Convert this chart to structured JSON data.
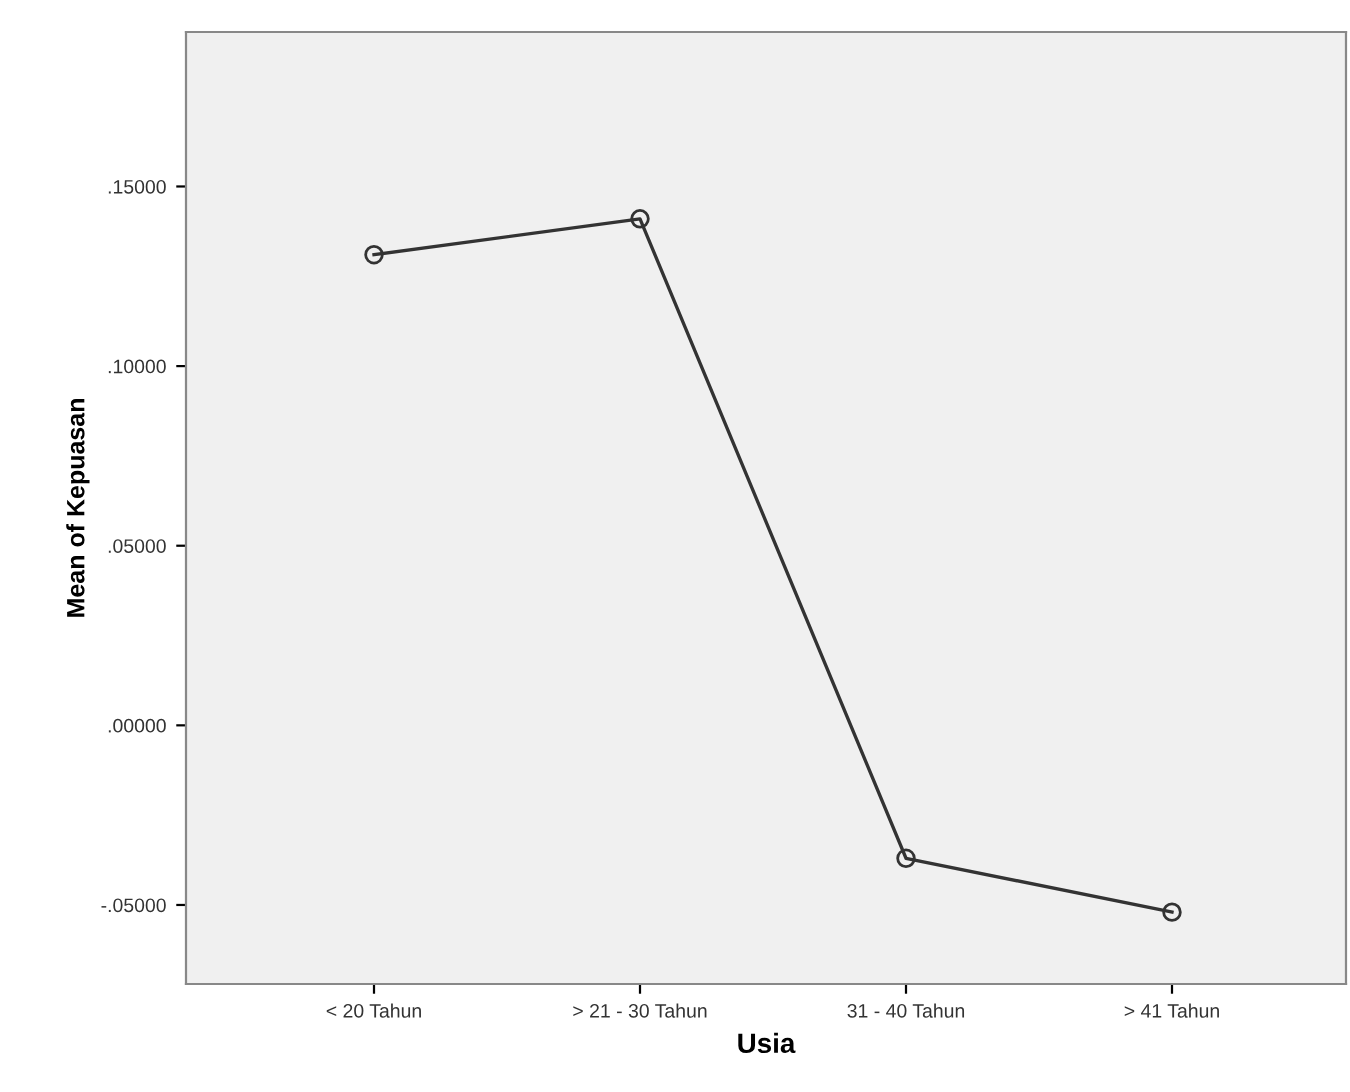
{
  "chart_data": {
    "type": "line",
    "xlabel": "Usia",
    "ylabel": "Mean of Kepuasan",
    "categories": [
      "< 20 Tahun",
      "> 21 - 30 Tahun",
      "31 - 40 Tahun",
      "> 41 Tahun"
    ],
    "series": [
      {
        "color": "#333333",
        "values": [
          0.131,
          0.141,
          -0.037,
          -0.052
        ]
      }
    ],
    "marker": "circle",
    "line_style": "solid",
    "grid": false,
    "legend": false,
    "ylim": [
      -0.072,
      0.193
    ],
    "yticks": [
      {
        "value": -0.05,
        "label": "-.05000"
      },
      {
        "value": 0.0,
        "label": ".00000"
      },
      {
        "value": 0.05,
        "label": ".05000"
      },
      {
        "value": 0.1,
        "label": ".10000"
      },
      {
        "value": 0.15,
        "label": ".15000"
      }
    ]
  }
}
